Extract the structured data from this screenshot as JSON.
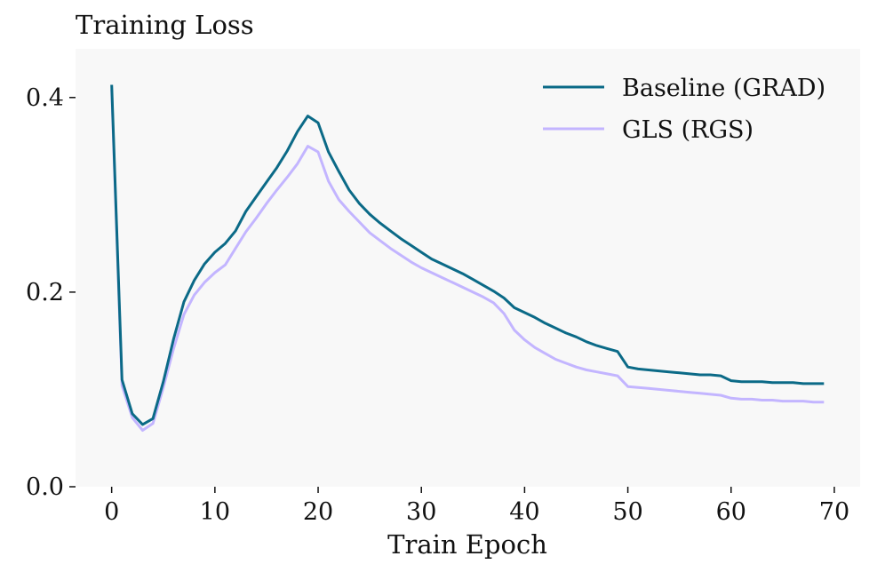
{
  "chart_data": {
    "type": "line",
    "title": "Training Loss",
    "xlabel": "Train Epoch",
    "ylabel": "",
    "xlim": [
      -3.5,
      72.5
    ],
    "ylim": [
      0.0,
      0.45
    ],
    "xticks": [
      0,
      10,
      20,
      30,
      40,
      50,
      60,
      70
    ],
    "yticks": [
      0.0,
      0.2,
      0.4
    ],
    "xtick_labels": [
      "0",
      "10",
      "20",
      "30",
      "40",
      "50",
      "60",
      "70"
    ],
    "ytick_labels": [
      "0.0",
      "0.2",
      "0.4"
    ],
    "grid": false,
    "legend_position": "top-right",
    "background_color": "#f8f8f8",
    "x": [
      0,
      1,
      2,
      3,
      4,
      5,
      6,
      7,
      8,
      9,
      10,
      11,
      12,
      13,
      14,
      15,
      16,
      17,
      18,
      19,
      20,
      21,
      22,
      23,
      24,
      25,
      26,
      27,
      28,
      29,
      30,
      31,
      32,
      33,
      34,
      35,
      36,
      37,
      38,
      39,
      40,
      41,
      42,
      43,
      44,
      45,
      46,
      47,
      48,
      49,
      50,
      51,
      52,
      53,
      54,
      55,
      56,
      57,
      58,
      59,
      60,
      61,
      62,
      63,
      64,
      65,
      66,
      67,
      68,
      69
    ],
    "series": [
      {
        "name": "Baseline (GRAD)",
        "color": "#0b6a87",
        "values": [
          0.413,
          0.11,
          0.075,
          0.064,
          0.07,
          0.108,
          0.152,
          0.19,
          0.212,
          0.229,
          0.241,
          0.25,
          0.263,
          0.283,
          0.298,
          0.313,
          0.328,
          0.345,
          0.365,
          0.381,
          0.374,
          0.344,
          0.324,
          0.305,
          0.291,
          0.28,
          0.271,
          0.263,
          0.255,
          0.248,
          0.241,
          0.234,
          0.229,
          0.224,
          0.219,
          0.213,
          0.207,
          0.201,
          0.194,
          0.184,
          0.179,
          0.174,
          0.168,
          0.163,
          0.158,
          0.154,
          0.149,
          0.145,
          0.142,
          0.139,
          0.123,
          0.121,
          0.12,
          0.119,
          0.118,
          0.117,
          0.116,
          0.115,
          0.115,
          0.114,
          0.109,
          0.108,
          0.108,
          0.108,
          0.107,
          0.107,
          0.107,
          0.106,
          0.106,
          0.106
        ]
      },
      {
        "name": "GLS (RGS)",
        "color": "#c3b5ff",
        "values": [
          0.408,
          0.104,
          0.071,
          0.058,
          0.065,
          0.102,
          0.142,
          0.177,
          0.197,
          0.21,
          0.22,
          0.228,
          0.245,
          0.262,
          0.276,
          0.291,
          0.305,
          0.318,
          0.332,
          0.35,
          0.344,
          0.314,
          0.295,
          0.283,
          0.272,
          0.261,
          0.253,
          0.245,
          0.238,
          0.231,
          0.225,
          0.22,
          0.215,
          0.21,
          0.205,
          0.2,
          0.195,
          0.189,
          0.178,
          0.161,
          0.151,
          0.143,
          0.137,
          0.131,
          0.127,
          0.123,
          0.12,
          0.118,
          0.116,
          0.114,
          0.103,
          0.102,
          0.101,
          0.1,
          0.099,
          0.098,
          0.097,
          0.096,
          0.095,
          0.094,
          0.091,
          0.09,
          0.09,
          0.089,
          0.089,
          0.088,
          0.088,
          0.088,
          0.087,
          0.087
        ]
      }
    ]
  }
}
